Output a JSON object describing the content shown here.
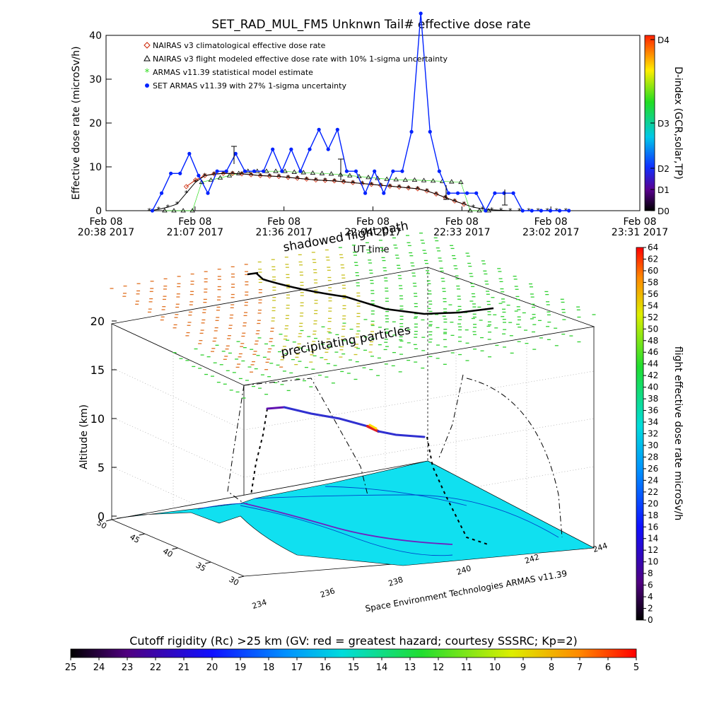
{
  "chart_data": [
    {
      "type": "line",
      "title": "SET_RAD_MUL_FM5 Unknwn Tail#  effective dose rate",
      "xlabel": "UT time",
      "ylabel": "Effective dose rate (microSv/h)",
      "ylim": [
        0,
        40
      ],
      "yticks": [
        "0",
        "10",
        "20",
        "30",
        "40"
      ],
      "ytick_values": [
        0,
        10,
        20,
        30,
        40
      ],
      "xticks": [
        {
          "day": "Feb 08",
          "time": "20:38 2017"
        },
        {
          "day": "Feb 08",
          "time": "21:07 2017"
        },
        {
          "day": "Feb 08",
          "time": "21:36 2017"
        },
        {
          "day": "Feb 08",
          "time": "22:04 2017"
        },
        {
          "day": "Feb 08",
          "time": "22:33 2017"
        },
        {
          "day": "Feb 08",
          "time": "23:02 2017"
        },
        {
          "day": "Feb 08",
          "time": "23:31 2017"
        }
      ],
      "xlim_minutes_after_start": [
        0,
        173
      ],
      "legend": [
        {
          "label": "NAIRAS v3 climatological effective dose rate",
          "color": "#cc2200",
          "marker": "diamond"
        },
        {
          "label": "NAIRAS v3 flight modeled effective dose rate with 10% 1-sigma uncertainty",
          "color": "#000000",
          "marker": "triangle"
        },
        {
          "label": "ARMAS v11.39 statistical model estimate",
          "color": "#33dd22",
          "marker": "asterisk"
        },
        {
          "label": "SET ARMAS v11.39 with 27% 1-sigma uncertainty",
          "color": "#0022ff",
          "marker": "dot"
        }
      ],
      "series": [
        {
          "name": "SET ARMAS v11.39 with 27% 1-sigma uncertainty",
          "color": "#0022ff",
          "x": [
            15,
            18,
            21,
            24,
            27,
            30,
            33,
            36,
            39,
            42,
            45,
            48,
            51,
            54,
            57,
            60,
            63,
            66,
            69,
            72,
            75,
            78,
            81,
            84,
            87,
            90,
            93,
            96,
            99,
            102,
            105,
            108,
            111,
            114,
            117,
            120,
            123,
            126,
            129,
            132,
            135,
            138,
            141,
            144,
            147,
            150
          ],
          "y": [
            0,
            4,
            8.5,
            8.5,
            13,
            8,
            4,
            9,
            9,
            13,
            9,
            9,
            9,
            14,
            9,
            14,
            9,
            14,
            18.5,
            14,
            18.5,
            9,
            9,
            4,
            9,
            4,
            9,
            9,
            18,
            45,
            18,
            9,
            4,
            4,
            4,
            4,
            0,
            4,
            4,
            4,
            0,
            0,
            0,
            0,
            0,
            0
          ]
        },
        {
          "name": "ARMAS v11.39 statistical model estimate",
          "color": "#33dd22",
          "x": [
            19,
            22,
            25,
            28,
            31,
            34,
            37,
            40,
            43,
            46,
            49,
            52,
            55,
            58,
            61,
            64,
            67,
            70,
            73,
            76,
            79,
            82,
            85,
            88,
            91,
            94,
            97,
            100,
            103,
            106,
            109,
            112,
            115,
            118,
            121,
            124
          ],
          "y": [
            0,
            0,
            0,
            0,
            6.5,
            7,
            7.5,
            8,
            8.5,
            9,
            9,
            9,
            9,
            9,
            8.8,
            8.7,
            8.6,
            8.5,
            8.4,
            8.2,
            8,
            7.8,
            7.6,
            7.4,
            7.2,
            7.1,
            7,
            7,
            6.9,
            6.8,
            6.7,
            6.6,
            6.5,
            0,
            0,
            0
          ]
        },
        {
          "name": "NAIRAS v3 flight modeled effective dose rate with 10% 1-sigma uncertainty",
          "color": "#000000",
          "x": [
            14,
            17,
            20,
            23,
            26,
            29,
            32,
            35,
            38,
            41,
            44,
            47,
            50,
            53,
            56,
            59,
            62,
            65,
            68,
            71,
            74,
            77,
            80,
            83,
            86,
            89,
            92,
            95,
            98,
            101,
            104,
            107,
            110,
            113,
            116,
            119,
            122,
            125,
            128,
            131,
            134,
            137,
            140,
            143,
            146,
            149
          ],
          "y": [
            0,
            0.3,
            0.8,
            1.5,
            4,
            6.5,
            8,
            8.3,
            8.5,
            8.5,
            8.4,
            8.2,
            8,
            7.9,
            7.8,
            7.6,
            7.4,
            7.2,
            7,
            6.9,
            6.8,
            6.6,
            6.4,
            6.2,
            6,
            5.8,
            5.6,
            5.4,
            5.2,
            5,
            4.5,
            3.8,
            3,
            2.2,
            1.5,
            0.8,
            0.4,
            0.2,
            0.1,
            0,
            0,
            0,
            0,
            0,
            0,
            0
          ]
        },
        {
          "name": "NAIRAS v3 climatological effective dose rate",
          "color": "#cc2200",
          "x": [
            26,
            29,
            32,
            35,
            38,
            41,
            44,
            47,
            50,
            53,
            56,
            59,
            62,
            65,
            68,
            71,
            74,
            77,
            80,
            83,
            86,
            89,
            92,
            95,
            98,
            101,
            104,
            107,
            110,
            113,
            116
          ],
          "y": [
            5.5,
            7,
            8,
            8.4,
            8.5,
            8.5,
            8.4,
            8.2,
            8,
            7.9,
            7.8,
            7.6,
            7.4,
            7.2,
            7,
            6.9,
            6.8,
            6.6,
            6.4,
            6.2,
            6,
            5.8,
            5.6,
            5.4,
            5.2,
            5,
            4.5,
            3.8,
            3,
            2.2,
            1.5
          ]
        }
      ],
      "annotations": [
        "shadowed flight path"
      ]
    },
    {
      "type": "scatter",
      "zlabel": "Altitude (km)",
      "zticks": [
        "0",
        "5",
        "10",
        "15",
        "20"
      ],
      "lat_ticks": [
        "30",
        "35",
        "40",
        "45",
        "50"
      ],
      "lon_ticks": [
        "234",
        "236",
        "238",
        "240",
        "242",
        "244"
      ],
      "annotations": [
        "precipitating particles"
      ],
      "credit": "Space Environment Technologies ARMAS v11.39",
      "colorbar": {
        "label": "flight effective dose rate microSv/h",
        "min": 0,
        "max": 64,
        "ticks": [
          "0",
          "2",
          "4",
          "6",
          "8",
          "10",
          "12",
          "14",
          "16",
          "18",
          "20",
          "22",
          "24",
          "26",
          "28",
          "30",
          "32",
          "34",
          "36",
          "38",
          "40",
          "42",
          "44",
          "46",
          "48",
          "50",
          "52",
          "54",
          "56",
          "58",
          "60",
          "62",
          "64"
        ]
      },
      "dindex_bar": {
        "label": "D-index (GCR,solar,TP)",
        "ticks": [
          "D0",
          "D1",
          "D2",
          "D3",
          "D4"
        ]
      }
    },
    {
      "type": "heatmap",
      "title": "Cutoff rigidity (Rc) >25 km (GV: red = greatest hazard; courtesy SSSRC; Kp=2)",
      "ticks": [
        "25",
        "24",
        "23",
        "22",
        "21",
        "20",
        "19",
        "18",
        "17",
        "16",
        "15",
        "14",
        "13",
        "12",
        "11",
        "10",
        "9",
        "8",
        "7",
        "6",
        "5"
      ]
    }
  ]
}
